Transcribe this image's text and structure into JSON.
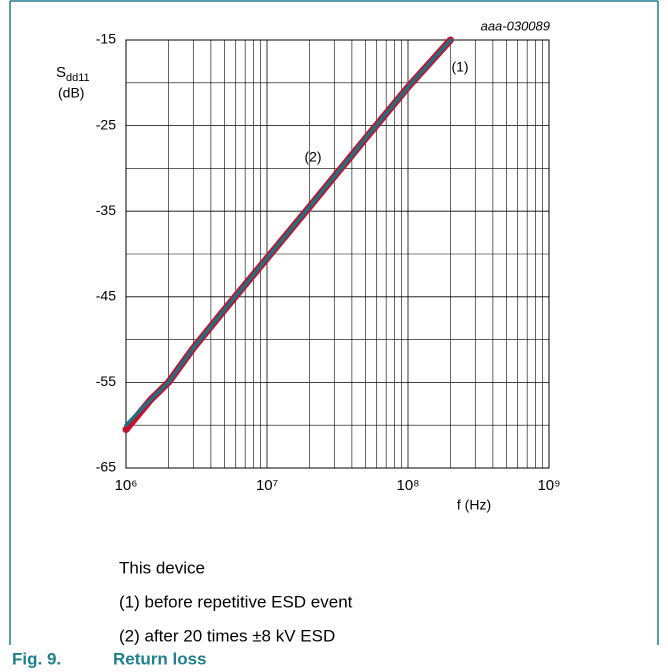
{
  "chart_data": {
    "type": "line",
    "code": "aaa-030089",
    "ylabel": {
      "main": "S",
      "sub": "dd11",
      "unit": "(dB)"
    },
    "xlabel": "f (Hz)",
    "xscale": "log",
    "xlim": [
      1000000,
      1000000000
    ],
    "xticks": [
      {
        "value": 1000000,
        "label": "10⁶"
      },
      {
        "value": 10000000,
        "label": "10⁷"
      },
      {
        "value": 100000000,
        "label": "10⁸"
      },
      {
        "value": 1000000000,
        "label": "10⁹"
      }
    ],
    "ylim": [
      -65,
      -15
    ],
    "yticks": [
      -65,
      -55,
      -45,
      -35,
      -25,
      -15
    ],
    "minor_yticks": [
      -60,
      -50,
      -40,
      -30,
      -20
    ],
    "grid": true,
    "x": [
      1000000,
      1500000,
      2000000,
      3000000,
      5000000,
      10000000,
      20000000,
      50000000,
      100000000,
      200000000
    ],
    "series": [
      {
        "name": "(2)",
        "color": "#c8102e",
        "values": [
          -60.5,
          -57,
          -55,
          -51,
          -46.5,
          -40.5,
          -34.5,
          -26.5,
          -20.5,
          -15
        ]
      },
      {
        "name": "(1)",
        "color": "#1f6f80",
        "values": [
          -60,
          -57,
          -55,
          -51,
          -46.5,
          -40.5,
          -34.5,
          -26.5,
          -20.5,
          -15
        ]
      }
    ],
    "notes": [
      "This device",
      "(1) before repetitive ESD event",
      "(2) after 20 times ±8 kV ESD"
    ],
    "caption": {
      "number": "Fig. 9.",
      "title": "Return loss"
    }
  }
}
